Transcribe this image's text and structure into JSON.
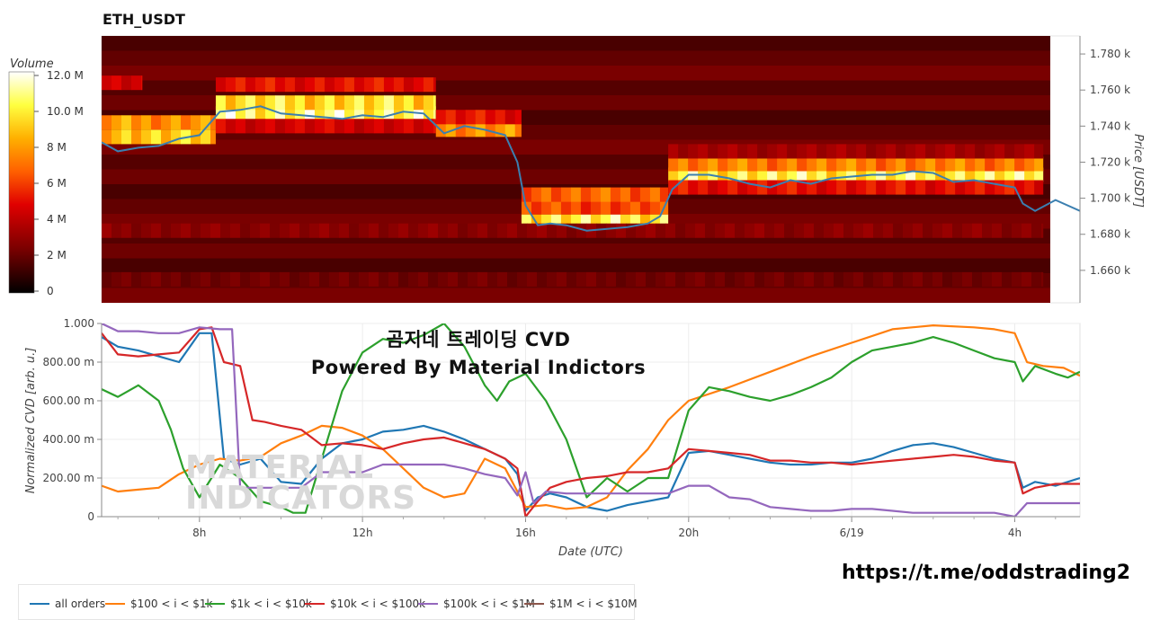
{
  "header": {
    "title": "ETH_USDT"
  },
  "overlay": {
    "line1": "곰지네 트레이딩 CVD",
    "line2": "Powered By Material Indictors"
  },
  "footer": {
    "url": "https://t.me/oddstrading2"
  },
  "watermark": {
    "line1": "MATERIAL",
    "line2": "INDICATORS"
  },
  "colors": {
    "all_orders": "#1f77b4",
    "tier_100_1k": "#ff7f0e",
    "tier_1k_10k": "#2ca02c",
    "tier_10k_100k": "#d62728",
    "tier_100k_1m": "#9467bd",
    "tier_1m_10m": "#8c564b"
  },
  "chart_data": [
    {
      "type": "heatmap",
      "title": "ETH_USDT",
      "xlabel": "",
      "ylabel": "Price [USDT]",
      "colorbar_label": "Volume",
      "colorbar_ticks": [
        "12.0 M",
        "10.0 M",
        "8 M",
        "6 M",
        "4 M",
        "2 M",
        "0"
      ],
      "y_ticks": [
        "1.780 k",
        "1.760 k",
        "1.740 k",
        "1.720 k",
        "1.700 k",
        "1.680 k",
        "1.660 k"
      ],
      "y_tick_values": [
        1780,
        1760,
        1740,
        1720,
        1700,
        1680,
        1660
      ],
      "ylim": [
        1642,
        1790
      ],
      "xlim": [
        5.6,
        29.6
      ],
      "price_series": {
        "name": "Price",
        "x": [
          5.6,
          6.0,
          6.5,
          7.0,
          7.5,
          8.0,
          8.5,
          9.0,
          9.5,
          10.0,
          10.5,
          11.0,
          11.5,
          12.0,
          12.5,
          13.0,
          13.5,
          14.0,
          14.5,
          15.0,
          15.5,
          15.8,
          16.0,
          16.3,
          16.6,
          17.0,
          17.5,
          18.0,
          18.5,
          19.0,
          19.3,
          19.6,
          20.0,
          20.5,
          21.0,
          21.5,
          22.0,
          22.5,
          23.0,
          23.5,
          24.0,
          24.5,
          25.0,
          25.5,
          26.0,
          26.5,
          27.0,
          27.5,
          28.0,
          28.2,
          28.5,
          29.0,
          29.6
        ],
        "y": [
          1731,
          1726,
          1728,
          1729,
          1733,
          1735,
          1748,
          1749,
          1751,
          1747,
          1746,
          1745,
          1744,
          1746,
          1745,
          1748,
          1747,
          1736,
          1740,
          1738,
          1735,
          1720,
          1696,
          1685,
          1686,
          1685,
          1682,
          1683,
          1684,
          1686,
          1690,
          1705,
          1713,
          1713,
          1711,
          1708,
          1706,
          1710,
          1708,
          1711,
          1712,
          1713,
          1713,
          1715,
          1714,
          1709,
          1710,
          1708,
          1706,
          1697,
          1693,
          1699,
          1693
        ]
      },
      "volume_bands": [
        {
          "x_start": 5.6,
          "x_end": 8.4,
          "price": 1734,
          "intensity": 0.8
        },
        {
          "x_start": 5.6,
          "x_end": 8.4,
          "price": 1742,
          "intensity": 0.7
        },
        {
          "x_start": 5.6,
          "x_end": 6.6,
          "price": 1764,
          "intensity": 0.4
        },
        {
          "x_start": 8.4,
          "x_end": 13.8,
          "price": 1747,
          "intensity": 0.95
        },
        {
          "x_start": 8.4,
          "x_end": 13.8,
          "price": 1753,
          "intensity": 0.85
        },
        {
          "x_start": 8.4,
          "x_end": 13.8,
          "price": 1740,
          "intensity": 0.4
        },
        {
          "x_start": 8.4,
          "x_end": 13.8,
          "price": 1763,
          "intensity": 0.45
        },
        {
          "x_start": 13.8,
          "x_end": 15.9,
          "price": 1738,
          "intensity": 0.7
        },
        {
          "x_start": 13.8,
          "x_end": 15.9,
          "price": 1745,
          "intensity": 0.45
        },
        {
          "x_start": 15.9,
          "x_end": 19.5,
          "price": 1687,
          "intensity": 0.9
        },
        {
          "x_start": 15.9,
          "x_end": 19.5,
          "price": 1695,
          "intensity": 0.55
        },
        {
          "x_start": 15.9,
          "x_end": 19.5,
          "price": 1702,
          "intensity": 0.6
        },
        {
          "x_start": 19.5,
          "x_end": 28.7,
          "price": 1713,
          "intensity": 0.9
        },
        {
          "x_start": 19.5,
          "x_end": 28.7,
          "price": 1719,
          "intensity": 0.65
        },
        {
          "x_start": 19.5,
          "x_end": 28.7,
          "price": 1706,
          "intensity": 0.45
        },
        {
          "x_start": 19.5,
          "x_end": 28.7,
          "price": 1726,
          "intensity": 0.3
        },
        {
          "x_start": 5.6,
          "x_end": 28.7,
          "price": 1682,
          "intensity": 0.25
        },
        {
          "x_start": 5.6,
          "x_end": 28.7,
          "price": 1655,
          "intensity": 0.2
        }
      ]
    },
    {
      "type": "line",
      "title": "",
      "xlabel": "Date (UTC)",
      "ylabel": "Normalized CVD [arb. u.]",
      "y_ticks": [
        "1.000",
        "800.00 m",
        "600.00 m",
        "400.00 m",
        "200.00 m",
        "0"
      ],
      "y_tick_values": [
        1.0,
        0.8,
        0.6,
        0.4,
        0.2,
        0
      ],
      "x_ticks": [
        "8h",
        "12h",
        "16h",
        "20h",
        "6/19",
        "4h"
      ],
      "x_tick_values": [
        8,
        12,
        16,
        20,
        24,
        28
      ],
      "ylim": [
        0,
        1.0
      ],
      "xlim": [
        5.6,
        29.6
      ],
      "grid": true,
      "legend_position": "bottom-left",
      "series": [
        {
          "name": "all orders",
          "color": "#1f77b4",
          "x": [
            5.6,
            6.0,
            6.5,
            7.0,
            7.5,
            8.0,
            8.3,
            8.6,
            9.0,
            9.5,
            10.0,
            10.5,
            11.0,
            11.5,
            12.0,
            12.5,
            13.0,
            13.5,
            14.0,
            14.5,
            15.0,
            15.5,
            15.8,
            16.0,
            16.3,
            16.6,
            17.0,
            17.5,
            18.0,
            18.5,
            19.0,
            19.5,
            20.0,
            20.5,
            21.0,
            21.5,
            22.0,
            22.5,
            23.0,
            23.5,
            24.0,
            24.5,
            25.0,
            25.5,
            26.0,
            26.5,
            27.0,
            27.5,
            28.0,
            28.2,
            28.5,
            29.0,
            29.6
          ],
          "y": [
            0.93,
            0.88,
            0.86,
            0.83,
            0.8,
            0.95,
            0.95,
            0.3,
            0.27,
            0.3,
            0.18,
            0.17,
            0.3,
            0.38,
            0.4,
            0.44,
            0.45,
            0.47,
            0.44,
            0.4,
            0.35,
            0.3,
            0.22,
            0.03,
            0.1,
            0.12,
            0.1,
            0.05,
            0.03,
            0.06,
            0.08,
            0.1,
            0.33,
            0.34,
            0.32,
            0.3,
            0.28,
            0.27,
            0.27,
            0.28,
            0.28,
            0.3,
            0.34,
            0.37,
            0.38,
            0.36,
            0.33,
            0.3,
            0.28,
            0.15,
            0.18,
            0.16,
            0.2
          ]
        },
        {
          "name": "$100 < i < $1k",
          "color": "#ff7f0e",
          "x": [
            5.6,
            6.0,
            6.5,
            7.0,
            7.5,
            8.0,
            8.5,
            9.0,
            9.5,
            10.0,
            10.5,
            11.0,
            11.5,
            12.0,
            12.5,
            13.0,
            13.5,
            14.0,
            14.5,
            15.0,
            15.5,
            16.0,
            16.5,
            17.0,
            17.5,
            18.0,
            18.5,
            19.0,
            19.5,
            20.0,
            21.0,
            22.0,
            23.0,
            24.0,
            25.0,
            26.0,
            27.0,
            27.5,
            28.0,
            28.3,
            28.7,
            29.2,
            29.6
          ],
          "y": [
            0.16,
            0.13,
            0.14,
            0.15,
            0.22,
            0.27,
            0.3,
            0.29,
            0.31,
            0.38,
            0.42,
            0.47,
            0.46,
            0.42,
            0.35,
            0.25,
            0.15,
            0.1,
            0.12,
            0.3,
            0.25,
            0.05,
            0.06,
            0.04,
            0.05,
            0.1,
            0.24,
            0.35,
            0.5,
            0.6,
            0.67,
            0.75,
            0.83,
            0.9,
            0.97,
            0.99,
            0.98,
            0.97,
            0.95,
            0.8,
            0.78,
            0.77,
            0.73
          ]
        },
        {
          "name": "$1k < i < $10k",
          "color": "#2ca02c",
          "x": [
            5.6,
            6.0,
            6.5,
            7.0,
            7.3,
            7.6,
            8.0,
            8.5,
            9.0,
            9.5,
            10.0,
            10.3,
            10.6,
            11.0,
            11.5,
            12.0,
            12.5,
            13.0,
            13.5,
            14.0,
            14.5,
            15.0,
            15.3,
            15.6,
            16.0,
            16.5,
            17.0,
            17.5,
            18.0,
            18.5,
            19.0,
            19.5,
            20.0,
            20.5,
            21.0,
            21.5,
            22.0,
            22.5,
            23.0,
            23.5,
            24.0,
            24.5,
            25.0,
            25.5,
            26.0,
            26.5,
            27.0,
            27.5,
            28.0,
            28.2,
            28.5,
            29.0,
            29.3,
            29.6
          ],
          "y": [
            0.66,
            0.62,
            0.68,
            0.6,
            0.45,
            0.25,
            0.1,
            0.27,
            0.2,
            0.08,
            0.05,
            0.02,
            0.02,
            0.3,
            0.65,
            0.85,
            0.92,
            0.9,
            0.94,
            1.0,
            0.88,
            0.68,
            0.6,
            0.7,
            0.74,
            0.6,
            0.4,
            0.1,
            0.2,
            0.13,
            0.2,
            0.2,
            0.55,
            0.67,
            0.65,
            0.62,
            0.6,
            0.63,
            0.67,
            0.72,
            0.8,
            0.86,
            0.88,
            0.9,
            0.93,
            0.9,
            0.86,
            0.82,
            0.8,
            0.7,
            0.78,
            0.74,
            0.72,
            0.75
          ]
        },
        {
          "name": "$10k < i < $100k",
          "color": "#d62728",
          "x": [
            5.6,
            6.0,
            6.5,
            7.0,
            7.5,
            8.0,
            8.3,
            8.6,
            9.0,
            9.3,
            9.6,
            10.0,
            10.5,
            11.0,
            11.5,
            12.0,
            12.5,
            13.0,
            13.5,
            14.0,
            14.5,
            15.0,
            15.5,
            15.8,
            16.0,
            16.3,
            16.6,
            17.0,
            17.5,
            18.0,
            18.5,
            19.0,
            19.5,
            20.0,
            20.5,
            21.0,
            21.5,
            22.0,
            22.5,
            23.0,
            23.5,
            24.0,
            24.5,
            25.0,
            25.5,
            26.0,
            26.5,
            27.0,
            27.5,
            28.0,
            28.2,
            28.5,
            29.0,
            29.6
          ],
          "y": [
            0.95,
            0.84,
            0.83,
            0.84,
            0.85,
            0.97,
            0.98,
            0.8,
            0.78,
            0.5,
            0.49,
            0.47,
            0.45,
            0.37,
            0.38,
            0.37,
            0.35,
            0.38,
            0.4,
            0.41,
            0.38,
            0.35,
            0.3,
            0.25,
            0.0,
            0.08,
            0.15,
            0.18,
            0.2,
            0.21,
            0.23,
            0.23,
            0.25,
            0.35,
            0.34,
            0.33,
            0.32,
            0.29,
            0.29,
            0.28,
            0.28,
            0.27,
            0.28,
            0.29,
            0.3,
            0.31,
            0.32,
            0.31,
            0.29,
            0.28,
            0.12,
            0.15,
            0.17,
            0.17
          ]
        },
        {
          "name": "$100k < i < $1M",
          "color": "#9467bd",
          "x": [
            5.6,
            6.0,
            6.5,
            7.0,
            7.5,
            8.0,
            8.5,
            8.8,
            9.0,
            9.5,
            10.0,
            10.5,
            11.0,
            11.5,
            12.0,
            12.5,
            13.0,
            13.5,
            14.0,
            14.5,
            15.0,
            15.5,
            15.8,
            16.0,
            16.2,
            16.5,
            17.0,
            17.5,
            18.0,
            18.5,
            19.0,
            19.5,
            20.0,
            20.5,
            21.0,
            21.5,
            22.0,
            22.5,
            23.0,
            23.5,
            24.0,
            24.5,
            25.0,
            25.5,
            26.0,
            26.5,
            27.0,
            27.5,
            28.0,
            28.3,
            28.6,
            29.0,
            29.6
          ],
          "y": [
            1.0,
            0.96,
            0.96,
            0.95,
            0.95,
            0.98,
            0.97,
            0.97,
            0.15,
            0.15,
            0.15,
            0.15,
            0.23,
            0.23,
            0.23,
            0.27,
            0.27,
            0.27,
            0.27,
            0.25,
            0.22,
            0.2,
            0.11,
            0.23,
            0.07,
            0.13,
            0.12,
            0.12,
            0.12,
            0.12,
            0.12,
            0.12,
            0.16,
            0.16,
            0.1,
            0.09,
            0.05,
            0.04,
            0.03,
            0.03,
            0.04,
            0.04,
            0.03,
            0.02,
            0.02,
            0.02,
            0.02,
            0.02,
            0.0,
            0.07,
            0.07,
            0.07,
            0.07
          ]
        },
        {
          "name": "$1M < i < $10M",
          "color": "#8c564b",
          "x": [],
          "y": []
        }
      ]
    }
  ]
}
